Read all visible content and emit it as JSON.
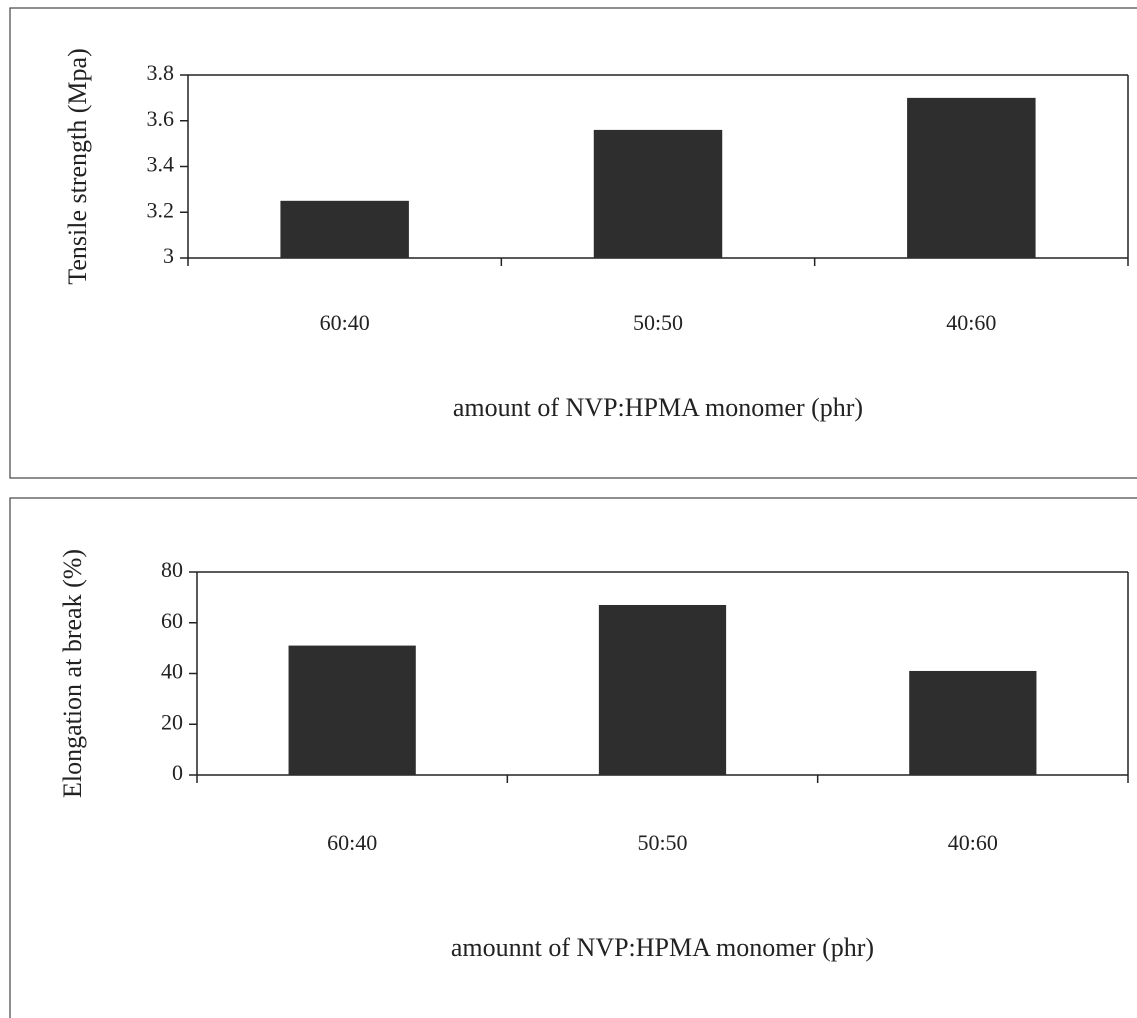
{
  "chart_data": [
    {
      "type": "bar",
      "ylabel": "Tensile strength (Mpa)",
      "xlabel": "amount of NVP:HPMA monomer (phr)",
      "categories": [
        "60:40",
        "50:50",
        "40:60"
      ],
      "values": [
        3.25,
        3.56,
        3.7
      ],
      "color": "#2e2e2e",
      "ylim": [
        3,
        3.8
      ],
      "yticks": [
        3,
        {
          "value": 3.2,
          "label": "3.2"
        },
        {
          "value": 3.4,
          "label": "3.4"
        },
        {
          "value": 3.6,
          "label": "3.6"
        },
        {
          "value": 3.8,
          "label": "3.8"
        }
      ],
      "grid": false
    },
    {
      "type": "bar",
      "ylabel": "Elongation at break (%)",
      "xlabel": "amounnt of NVP:HPMA monomer (phr)",
      "categories": [
        "60:40",
        "50:50",
        "40:60"
      ],
      "values": [
        51,
        67,
        41
      ],
      "color": "#2e2e2e",
      "ylim": [
        0,
        80
      ],
      "yticks": [
        0,
        20,
        40,
        60,
        80
      ],
      "grid": false
    }
  ]
}
